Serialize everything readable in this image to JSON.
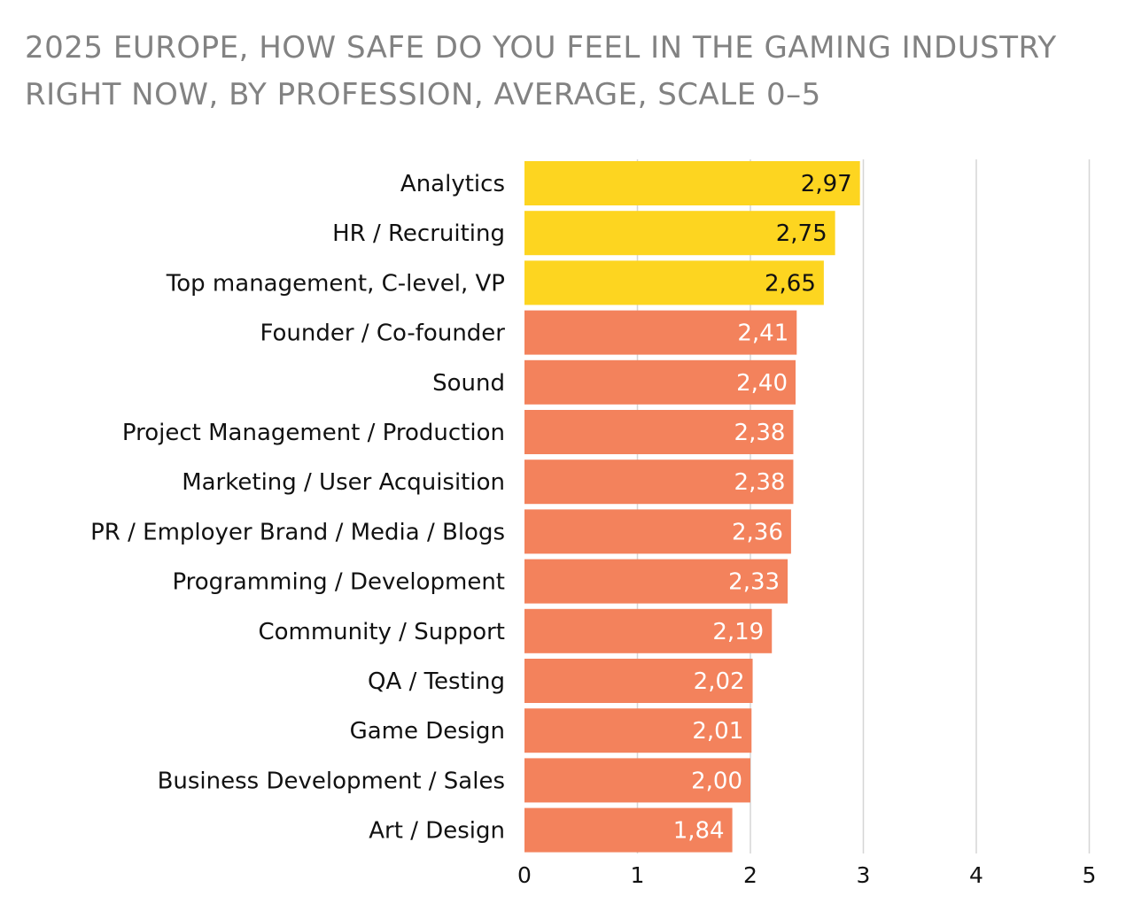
{
  "chart_data": {
    "type": "bar",
    "orientation": "horizontal",
    "title": "2025 EUROPE, HOW SAFE DO YOU FEEL IN THE GAMING INDUSTRY RIGHT NOW, BY PROFESSION, AVERAGE, SCALE 0–5",
    "xlabel": "",
    "ylabel": "",
    "xlim": [
      0,
      5
    ],
    "ticks": [
      "0",
      "1",
      "2",
      "3",
      "4",
      "5"
    ],
    "grid": true,
    "categories": [
      "Analytics",
      "HR / Recruiting",
      "Top management, C-level, VP",
      "Founder / Co-founder",
      "Sound",
      "Project Management / Production",
      "Marketing / User Acquisition",
      "PR / Employer Brand / Media / Blogs",
      "Programming / Development",
      "Community / Support",
      "QA / Testing",
      "Game Design",
      "Business Development / Sales",
      "Art / Design"
    ],
    "values": [
      2.97,
      2.75,
      2.65,
      2.41,
      2.4,
      2.38,
      2.38,
      2.36,
      2.33,
      2.19,
      2.02,
      2.01,
      2.0,
      1.84
    ],
    "value_labels": [
      "2,97",
      "2,75",
      "2,65",
      "2,41",
      "2,40",
      "2,38",
      "2,38",
      "2,36",
      "2,33",
      "2,19",
      "2,02",
      "2,01",
      "2,00",
      "1,84"
    ],
    "highlight_count": 3,
    "colors": {
      "highlight": "#FDD520",
      "default": "#F3825C",
      "highlight_text": "#111111",
      "default_text": "#ffffff"
    }
  }
}
